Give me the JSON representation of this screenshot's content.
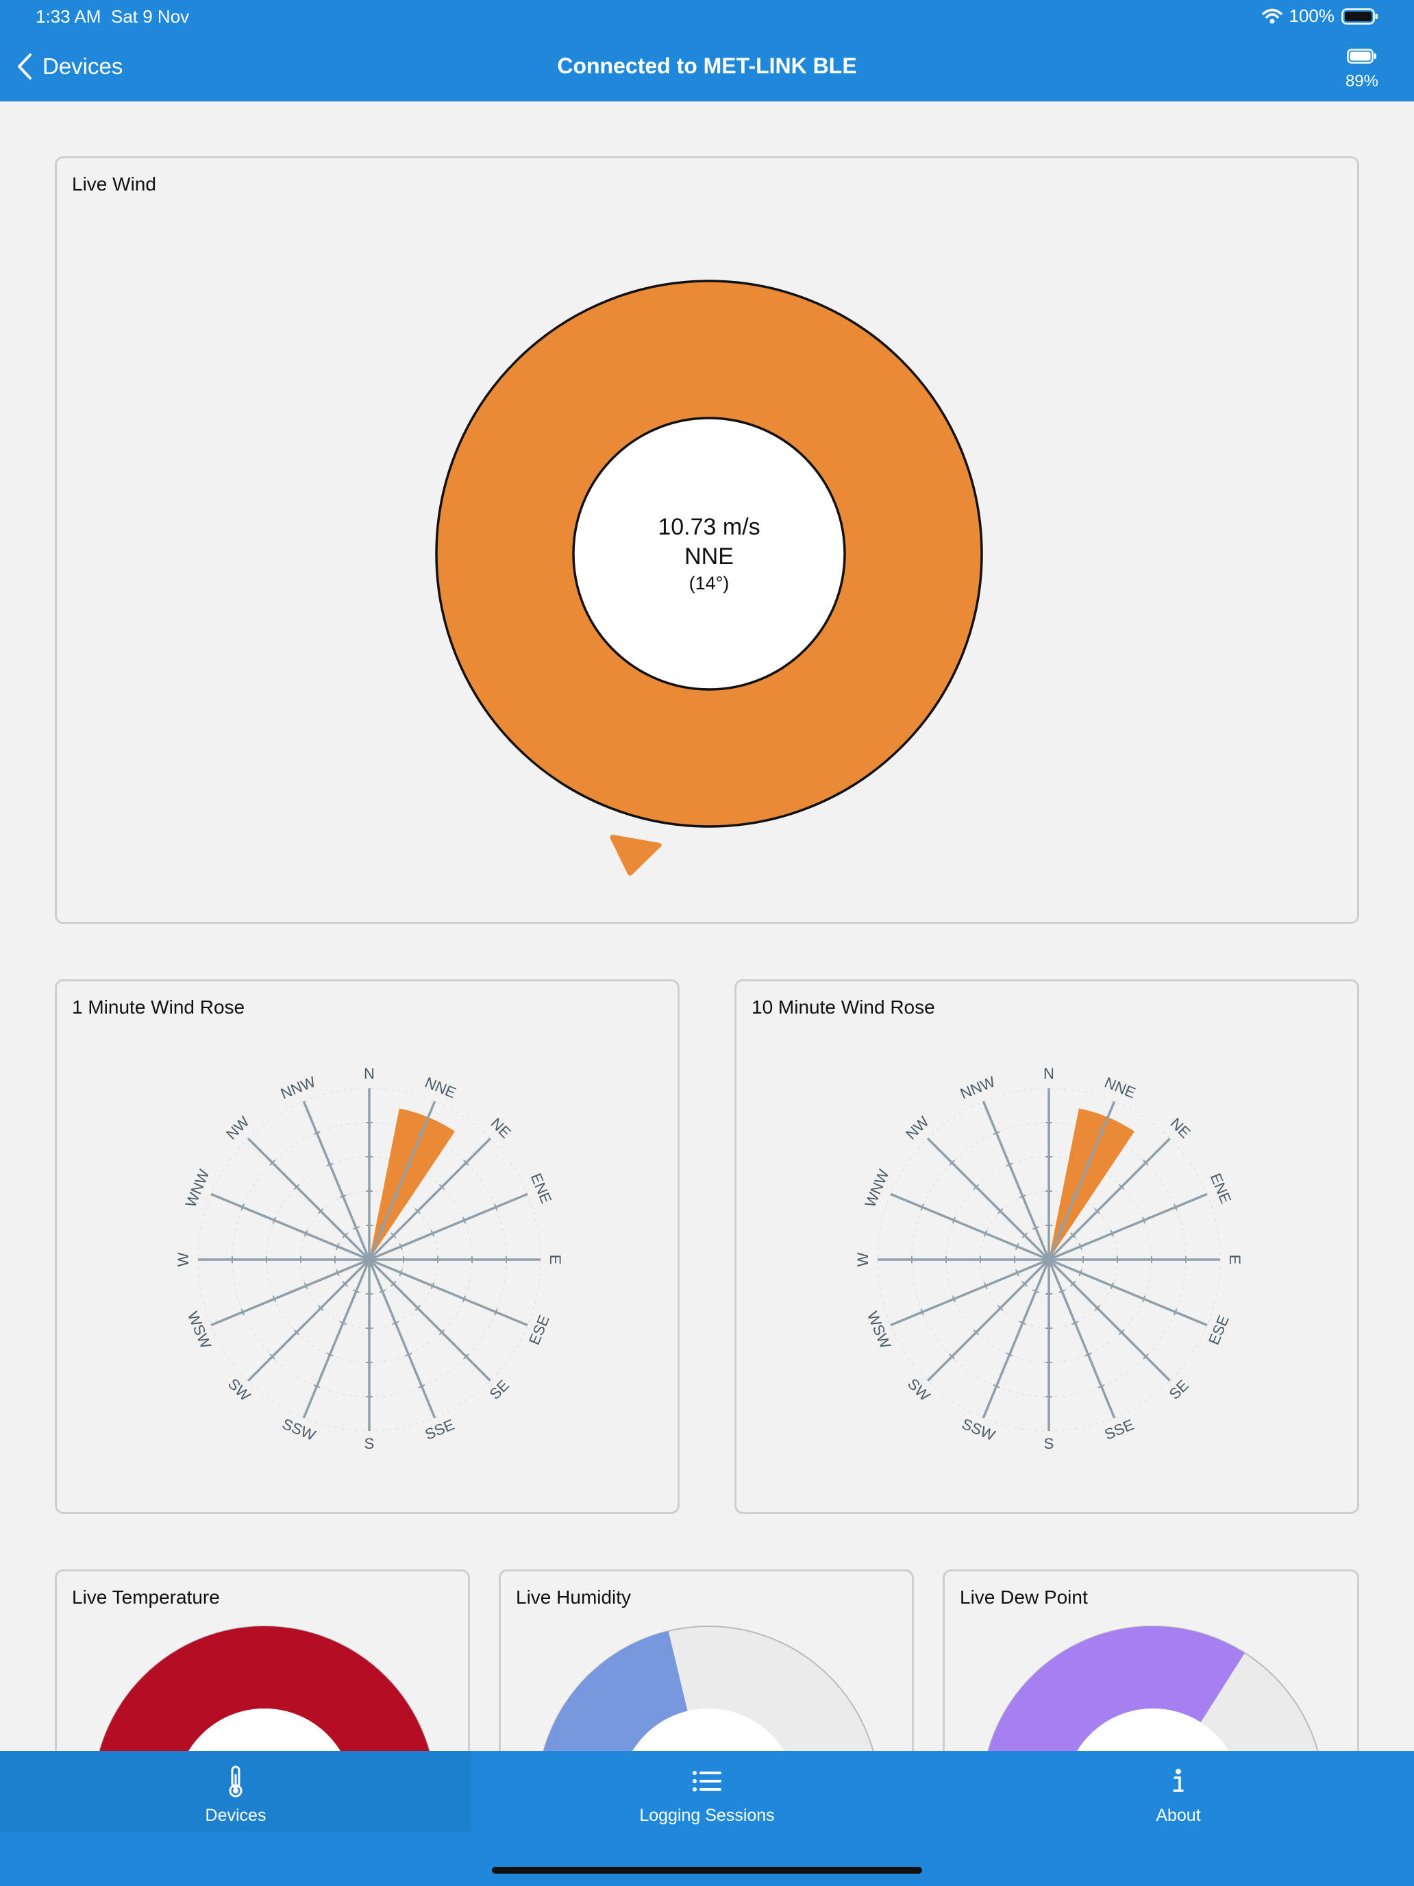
{
  "status_bar": {
    "time": "1:33 AM",
    "date": "Sat 9 Nov",
    "battery": "100%"
  },
  "nav": {
    "back_label": "Devices",
    "title": "Connected to MET-LINK BLE",
    "device_battery": "89%"
  },
  "live_wind": {
    "title": "Live Wind",
    "speed": "10.73 m/s",
    "direction": "NNE",
    "degrees": "(14°)",
    "ring_color": "#eb8a36"
  },
  "wind_rose_1min": {
    "title": "1 Minute Wind Rose",
    "labels": [
      "N",
      "NNE",
      "NE",
      "ENE",
      "E",
      "ESE",
      "SE",
      "SSE",
      "S",
      "SSW",
      "SW",
      "WSW",
      "W",
      "WNW",
      "NW",
      "NNW"
    ],
    "active": "NNE",
    "active_value": 0.9,
    "color": "#eb8a36"
  },
  "wind_rose_10min": {
    "title": "10 Minute Wind Rose",
    "labels": [
      "N",
      "NNE",
      "NE",
      "ENE",
      "E",
      "ESE",
      "SE",
      "SSE",
      "S",
      "SSW",
      "SW",
      "WSW",
      "W",
      "WNW",
      "NW",
      "NNW"
    ],
    "active": "NNE",
    "active_value": 0.9,
    "color": "#eb8a36"
  },
  "temperature": {
    "title": "Live Temperature",
    "color": "#b50d24",
    "fill": 1.0
  },
  "humidity": {
    "title": "Live Humidity",
    "color": "#7797de",
    "fill": 0.45
  },
  "dew_point": {
    "title": "Live Dew Point",
    "color": "#a680f0",
    "fill": 0.62
  },
  "tabs": [
    {
      "label": "Devices",
      "icon": "thermometer-icon",
      "active": true
    },
    {
      "label": "Logging Sessions",
      "icon": "list-icon",
      "active": false
    },
    {
      "label": "About",
      "icon": "info-icon",
      "active": false
    }
  ]
}
